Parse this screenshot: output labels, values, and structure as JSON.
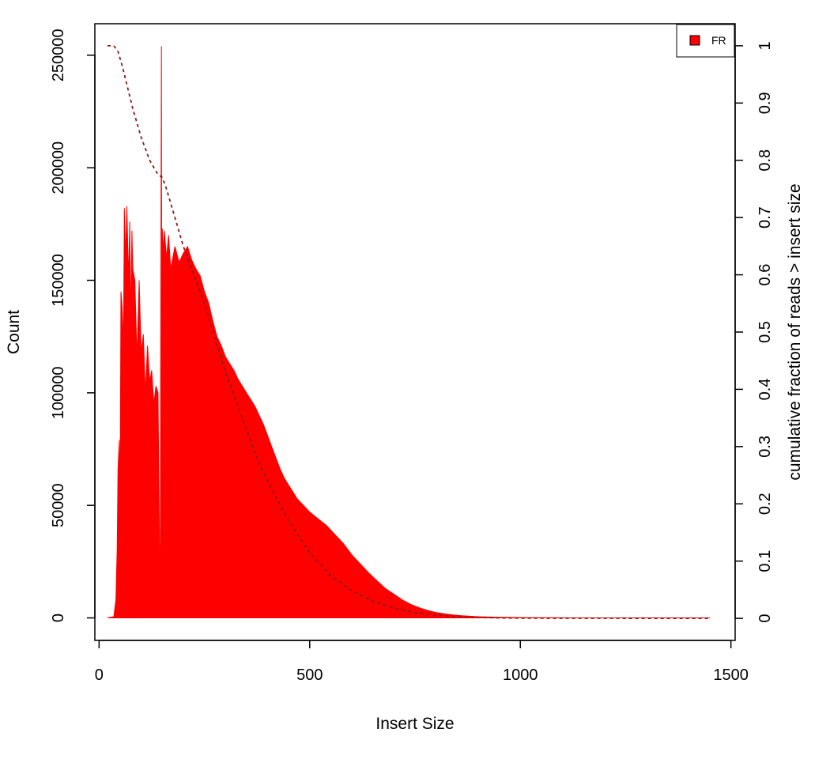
{
  "chart_data": {
    "type": "area",
    "xlabel": "Insert Size",
    "ylabel": "Count",
    "y2label": "cumulative fraction of reads > insert size",
    "xlim": [
      -10,
      1510
    ],
    "ylim": [
      -10000,
      264000
    ],
    "y2lim": [
      -0.0385,
      1.0385
    ],
    "xticks": [
      0,
      500,
      1000,
      1500
    ],
    "xtick_labels": [
      "0",
      "500",
      "1000",
      "1500"
    ],
    "yticks": [
      0,
      50000,
      100000,
      150000,
      200000,
      250000
    ],
    "ytick_labels": [
      "0",
      "50000",
      "100000",
      "150000",
      "200000",
      "250000"
    ],
    "y2ticks": [
      0,
      0.1,
      0.2,
      0.3,
      0.4,
      0.5,
      0.6,
      0.7,
      0.8,
      0.9,
      1
    ],
    "y2tick_labels": [
      "0",
      "0.1",
      "0.2",
      "0.3",
      "0.4",
      "0.5",
      "0.6",
      "0.7",
      "0.8",
      "0.9",
      "1"
    ],
    "legend": {
      "position": "top-right",
      "entries": [
        {
          "label": "FR",
          "color": "#ff0000"
        }
      ]
    },
    "series": [
      {
        "name": "FR",
        "color": "#ff0000",
        "style": "histogram",
        "x": [
          20,
          35,
          40,
          43,
          45,
          48,
          50,
          52,
          55,
          58,
          60,
          63,
          66,
          70,
          73,
          75,
          78,
          80,
          85,
          90,
          95,
          100,
          105,
          110,
          115,
          120,
          125,
          130,
          135,
          140,
          145,
          148,
          149,
          150,
          152,
          155,
          160,
          165,
          170,
          180,
          190,
          200,
          210,
          220,
          230,
          240,
          250,
          260,
          270,
          280,
          290,
          300,
          310,
          320,
          330,
          340,
          350,
          360,
          370,
          380,
          390,
          400,
          410,
          420,
          430,
          440,
          450,
          460,
          470,
          480,
          490,
          500,
          520,
          540,
          560,
          580,
          600,
          620,
          640,
          660,
          680,
          700,
          720,
          740,
          760,
          780,
          800,
          820,
          840,
          860,
          880,
          900,
          950,
          1000,
          1050,
          1100,
          1150,
          1200,
          1250,
          1300,
          1350,
          1400,
          1450
        ],
        "y": [
          0,
          500,
          8000,
          30000,
          66000,
          79000,
          55000,
          145000,
          138000,
          120000,
          182000,
          160000,
          183000,
          150000,
          176000,
          130000,
          172000,
          155000,
          150000,
          115000,
          150000,
          118000,
          126000,
          100000,
          121000,
          105000,
          110000,
          95000,
          103000,
          100000,
          0,
          254000,
          80000,
          173000,
          163000,
          172000,
          160000,
          170000,
          155000,
          165000,
          158000,
          162000,
          165000,
          159000,
          155000,
          152000,
          145000,
          140000,
          132000,
          125000,
          121000,
          116000,
          113000,
          110000,
          106000,
          103000,
          100000,
          97000,
          94000,
          90000,
          86000,
          81000,
          76000,
          71000,
          66000,
          62000,
          59000,
          56000,
          53000,
          51000,
          49000,
          47000,
          44000,
          41000,
          37000,
          33000,
          28000,
          24000,
          20000,
          16500,
          13000,
          10500,
          8000,
          6000,
          4500,
          3300,
          2400,
          1800,
          1300,
          1000,
          750,
          550,
          300,
          150,
          80,
          40,
          20,
          10,
          5,
          3,
          2,
          1,
          0
        ]
      },
      {
        "name": "",
        "color": "#8b1a1a",
        "style": "dashed",
        "axis": "right",
        "x": [
          20,
          35,
          45,
          55,
          65,
          80,
          100,
          120,
          140,
          150,
          160,
          180,
          200,
          225,
          250,
          275,
          300,
          325,
          350,
          375,
          400,
          450,
          500,
          550,
          600,
          650,
          700,
          750,
          800,
          850,
          900,
          950,
          1000,
          1100,
          1200,
          1300,
          1450
        ],
        "y": [
          1.0,
          1.0,
          0.99,
          0.965,
          0.935,
          0.89,
          0.84,
          0.8,
          0.775,
          0.77,
          0.75,
          0.7,
          0.65,
          0.6,
          0.55,
          0.49,
          0.43,
          0.38,
          0.33,
          0.28,
          0.24,
          0.17,
          0.115,
          0.075,
          0.048,
          0.03,
          0.018,
          0.01,
          0.006,
          0.003,
          0.0015,
          0.0008,
          0.0004,
          0.0002,
          0.0001,
          5e-05,
          0
        ]
      }
    ]
  }
}
